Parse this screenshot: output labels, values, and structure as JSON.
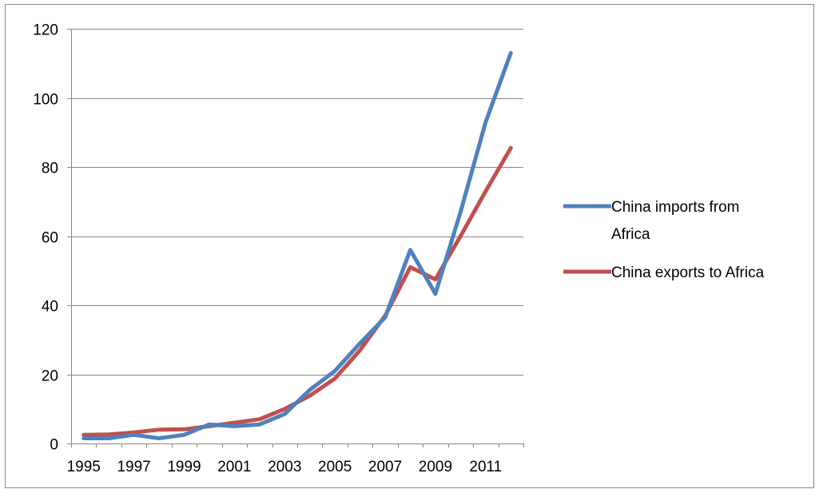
{
  "chart_data": {
    "type": "line",
    "title": "",
    "xlabel": "",
    "ylabel": "",
    "x": [
      1995,
      1996,
      1997,
      1998,
      1999,
      2000,
      2001,
      2002,
      2003,
      2004,
      2005,
      2006,
      2007,
      2008,
      2009,
      2010,
      2011,
      2012
    ],
    "x_tick_labels": [
      "1995",
      "1997",
      "1999",
      "2001",
      "2003",
      "2005",
      "2007",
      "2009",
      "2011"
    ],
    "x_tick_values": [
      1995,
      1997,
      1999,
      2001,
      2003,
      2005,
      2007,
      2009,
      2011
    ],
    "ylim": [
      0,
      120
    ],
    "y_ticks": [
      0,
      20,
      40,
      60,
      80,
      100,
      120
    ],
    "grid": "horizontal",
    "legend_position": "right",
    "series": [
      {
        "name": "China imports from Africa",
        "color": "#4f81bd",
        "values": [
          1.5,
          1.5,
          2.5,
          1.5,
          2.5,
          5.5,
          5.0,
          5.5,
          8.5,
          15.5,
          21.0,
          29.0,
          36.5,
          56.0,
          43.3,
          67.0,
          93.0,
          113.0
        ]
      },
      {
        "name": "China exports to Africa",
        "color": "#c0504d",
        "values": [
          2.5,
          2.6,
          3.2,
          4.0,
          4.1,
          5.0,
          6.0,
          7.0,
          10.0,
          13.8,
          18.8,
          27.0,
          37.0,
          51.0,
          47.5,
          60.0,
          73.0,
          85.5
        ]
      }
    ]
  }
}
